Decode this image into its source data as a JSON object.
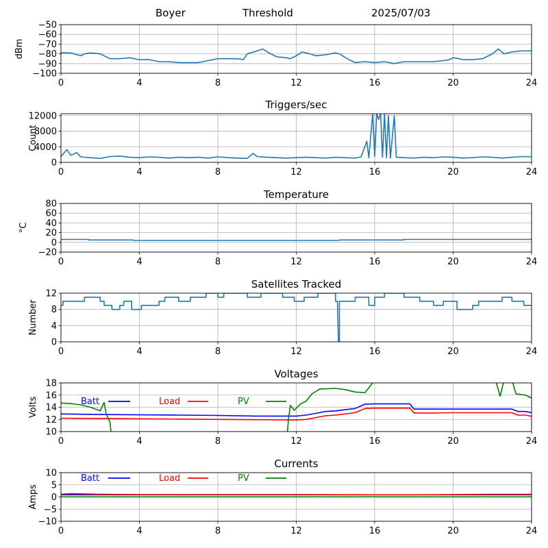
{
  "header": {
    "station": "Boyer",
    "mode": "Threshold",
    "date": "2025/07/03"
  },
  "chart_data": [
    {
      "type": "line",
      "title": "",
      "ylabel": "dBm",
      "xlim": [
        0,
        24
      ],
      "xticks": [
        "0",
        "4",
        "8",
        "12",
        "16",
        "20",
        "24"
      ],
      "ylim": [
        -100,
        -50
      ],
      "yticks": [
        "−50",
        "−60",
        "−70",
        "−80",
        "−90",
        "−100"
      ],
      "grid": true,
      "series": [
        {
          "color": "#1f77b4",
          "x": [
            0,
            0.5,
            1,
            1.2,
            1.5,
            2,
            2.5,
            3,
            3.5,
            4,
            4.5,
            5,
            5.5,
            6,
            6.5,
            7,
            7.5,
            8,
            8.5,
            9,
            9.3,
            9.5,
            10,
            10.3,
            10.6,
            11,
            11.5,
            11.7,
            12,
            12.3,
            12.7,
            13,
            13.5,
            14,
            14.2,
            14.6,
            15,
            15.5,
            16,
            16.5,
            17,
            17.5,
            18,
            18.5,
            19,
            19.5,
            19.8,
            20,
            20.3,
            20.5,
            21,
            21.5,
            22,
            22.3,
            22.6,
            23,
            23.5,
            24
          ],
          "y": [
            -79,
            -79,
            -82,
            -80,
            -79,
            -80,
            -85,
            -85,
            -84,
            -86,
            -86,
            -88,
            -88,
            -89,
            -89,
            -89,
            -87,
            -85,
            -85,
            -85,
            -86,
            -80,
            -77,
            -75,
            -79,
            -83,
            -84,
            -85,
            -82,
            -78,
            -80,
            -82,
            -81,
            -79,
            -80,
            -85,
            -89,
            -88,
            -89,
            -88,
            -90,
            -88,
            -88,
            -88,
            -88,
            -87,
            -86,
            -84,
            -85,
            -86,
            -86,
            -85,
            -80,
            -75,
            -80,
            -78,
            -77,
            -77
          ]
        }
      ]
    },
    {
      "type": "line",
      "title": "Triggers/sec",
      "ylabel": "Count",
      "xlim": [
        0,
        24
      ],
      "xticks": [
        "0",
        "4",
        "8",
        "12",
        "16",
        "20",
        "24"
      ],
      "ylim": [
        0,
        12500
      ],
      "yticks": [
        "12000",
        "8000",
        "4000",
        "0"
      ],
      "grid": true,
      "series": [
        {
          "color": "#1f77b4",
          "x": [
            0,
            0.3,
            0.5,
            0.8,
            1,
            1.5,
            2,
            2.5,
            3,
            3.5,
            4,
            4.5,
            5,
            5.5,
            6,
            6.5,
            7,
            7.5,
            8,
            8.5,
            9,
            9.5,
            9.8,
            10,
            10.5,
            11,
            11.5,
            12,
            12.5,
            13,
            13.5,
            14,
            14.5,
            15,
            15.3,
            15.6,
            15.7,
            15.9,
            16,
            16.1,
            16.2,
            16.3,
            16.4,
            16.5,
            16.6,
            16.7,
            16.8,
            17,
            17.1,
            17.5,
            18,
            18.5,
            19,
            19.5,
            20,
            20.5,
            21,
            21.5,
            22,
            22.5,
            23,
            23.5,
            24
          ],
          "y": [
            1500,
            3300,
            1800,
            2500,
            1400,
            1200,
            1000,
            1500,
            1600,
            1300,
            1200,
            1400,
            1300,
            1100,
            1300,
            1200,
            1300,
            1100,
            1400,
            1200,
            1100,
            1000,
            2300,
            1500,
            1300,
            1200,
            1100,
            1200,
            1300,
            1200,
            1100,
            1300,
            1200,
            1100,
            1400,
            5400,
            1200,
            12500,
            1500,
            12500,
            11000,
            12500,
            1300,
            12500,
            1200,
            12000,
            1100,
            12000,
            1300,
            1200,
            1100,
            1300,
            1200,
            1400,
            1300,
            1100,
            1200,
            1400,
            1300,
            1100,
            1300,
            1500,
            1400
          ]
        }
      ]
    },
    {
      "type": "line",
      "title": "Temperature",
      "ylabel": "°C",
      "xlim": [
        0,
        24
      ],
      "xticks": [
        "0",
        "4",
        "8",
        "12",
        "16",
        "20",
        "24"
      ],
      "ylim": [
        -20,
        80
      ],
      "yticks": [
        "80",
        "60",
        "40",
        "20",
        "0",
        "−20"
      ],
      "grid": true,
      "series": [
        {
          "color": "#1f77b4",
          "x": [
            0,
            1.4,
            1.4,
            3.7,
            3.7,
            14.2,
            14.2,
            17.5,
            17.5,
            24
          ],
          "y": [
            6,
            6,
            5,
            5,
            4,
            4,
            5,
            5,
            6,
            6
          ]
        }
      ]
    },
    {
      "type": "line",
      "title": "Satellites Tracked",
      "ylabel": "Number",
      "xlim": [
        0,
        24
      ],
      "xticks": [
        "0",
        "4",
        "8",
        "12",
        "16",
        "20",
        "24"
      ],
      "ylim": [
        0,
        12
      ],
      "yticks": [
        "12",
        "8",
        "4",
        "0"
      ],
      "grid": true,
      "series": [
        {
          "color": "#1f77b4",
          "x": [
            0,
            0.1,
            0.1,
            1.2,
            1.2,
            2,
            2,
            2.2,
            2.2,
            2.6,
            2.6,
            3,
            3,
            3.2,
            3.2,
            3.6,
            3.6,
            4.1,
            4.1,
            5,
            5,
            5.3,
            5.3,
            6,
            6,
            6.6,
            6.6,
            7.4,
            7.4,
            8,
            8,
            8.3,
            8.3,
            9.5,
            9.5,
            10.2,
            10.2,
            11.3,
            11.3,
            11.9,
            11.9,
            12.4,
            12.4,
            13.1,
            13.1,
            14,
            14,
            14.1,
            14.15,
            14.2,
            14.2,
            15,
            15,
            15.7,
            15.7,
            16,
            16,
            16.5,
            16.5,
            17.5,
            17.5,
            18.3,
            18.3,
            19,
            19,
            19.5,
            19.5,
            20.2,
            20.2,
            21,
            21,
            21.3,
            21.3,
            22.5,
            22.5,
            23,
            23,
            23.6,
            23.6,
            24
          ],
          "y": [
            9,
            9,
            10,
            10,
            11,
            11,
            10,
            10,
            9,
            9,
            8,
            8,
            9,
            9,
            10,
            10,
            8,
            8,
            9,
            9,
            10,
            10,
            11,
            11,
            10,
            10,
            11,
            11,
            12,
            12,
            11,
            11,
            12,
            12,
            11,
            11,
            12,
            12,
            11,
            11,
            10,
            10,
            11,
            11,
            12,
            12,
            10,
            10,
            0,
            0,
            10,
            10,
            11,
            11,
            9,
            9,
            11,
            11,
            12,
            12,
            11,
            11,
            10,
            10,
            9,
            9,
            10,
            10,
            8,
            8,
            9,
            9,
            10,
            10,
            11,
            11,
            10,
            10,
            9,
            9
          ]
        }
      ]
    },
    {
      "type": "line",
      "title": "Voltages",
      "ylabel": "Volts",
      "xlim": [
        0,
        24
      ],
      "xticks": [
        "0",
        "4",
        "8",
        "12",
        "16",
        "20",
        "24"
      ],
      "ylim": [
        10,
        18
      ],
      "yticks": [
        "18",
        "16",
        "14",
        "12",
        "10"
      ],
      "grid": true,
      "legend": [
        "Batt",
        "Load",
        "PV"
      ],
      "series": [
        {
          "name": "Batt",
          "color": "#0000ff",
          "x": [
            0,
            2,
            4,
            6,
            8,
            10,
            12,
            12.5,
            13,
            13.5,
            14,
            15,
            15.5,
            16,
            17,
            17.8,
            18,
            19,
            20,
            21,
            22,
            23,
            23.3,
            23.7,
            24
          ],
          "y": [
            12.9,
            12.8,
            12.75,
            12.7,
            12.65,
            12.55,
            12.55,
            12.7,
            13.0,
            13.3,
            13.4,
            13.8,
            14.5,
            14.55,
            14.55,
            14.55,
            13.7,
            13.7,
            13.7,
            13.7,
            13.7,
            13.7,
            13.3,
            13.3,
            13.1
          ]
        },
        {
          "name": "Load",
          "color": "#ff0000",
          "x": [
            0,
            2,
            4,
            6,
            8,
            10,
            12,
            12.5,
            13,
            13.5,
            14,
            15,
            15.5,
            16,
            17,
            17.8,
            18,
            19,
            20,
            21,
            22,
            23,
            23.3,
            23.7,
            24
          ],
          "y": [
            12.2,
            12.15,
            12.1,
            12.05,
            12,
            11.95,
            11.9,
            12.0,
            12.3,
            12.6,
            12.7,
            13.1,
            13.8,
            13.85,
            13.85,
            13.85,
            13.05,
            13.05,
            13.1,
            13.1,
            13.1,
            13.1,
            12.7,
            12.7,
            12.5
          ]
        },
        {
          "name": "PV",
          "color": "#008000",
          "x": [
            0,
            0.5,
            1,
            1.5,
            2,
            2.2,
            2.3,
            2.5,
            2.55,
            2.6,
            11.5,
            11.55,
            11.6,
            11.7,
            11.9,
            12.2,
            12.5,
            12.8,
            13.2,
            14,
            14.5,
            15,
            15.5,
            15.7,
            16,
            20,
            22,
            22.2,
            22.4,
            22.6,
            23,
            23.2,
            23.7,
            24
          ],
          "y": [
            14.7,
            14.6,
            14.4,
            14,
            13.4,
            14.8,
            13,
            11.5,
            10,
            9,
            9,
            10,
            12,
            14.3,
            13.5,
            14.5,
            15,
            16.2,
            17,
            17.1,
            16.9,
            16.5,
            16.4,
            17.2,
            18.4,
            20,
            20,
            18,
            15.8,
            18.5,
            18.5,
            16.2,
            16,
            15.5
          ]
        }
      ]
    },
    {
      "type": "line",
      "title": "Currents",
      "ylabel": "Amps",
      "xlim": [
        0,
        24
      ],
      "xticks": [
        "0",
        "4",
        "8",
        "12",
        "16",
        "20",
        "24"
      ],
      "ylim": [
        -10,
        10
      ],
      "yticks": [
        "10",
        "5",
        "0",
        "−5",
        "−10"
      ],
      "grid": true,
      "legend": [
        "Batt",
        "Load",
        "PV"
      ],
      "series": [
        {
          "name": "Batt",
          "color": "#0000ff",
          "x": [
            0,
            24
          ],
          "y": [
            0.9,
            0.9
          ]
        },
        {
          "name": "Load",
          "color": "#ff0000",
          "x": [
            0,
            0.5,
            1,
            2,
            4,
            8,
            12,
            16,
            18,
            20,
            22,
            24
          ],
          "y": [
            1.1,
            1.4,
            1.3,
            1.1,
            1.0,
            1.0,
            1.0,
            0.9,
            0.9,
            1.0,
            1.1,
            1.1
          ]
        },
        {
          "name": "PV",
          "color": "#008000",
          "x": [
            0,
            24
          ],
          "y": [
            0.05,
            0.05
          ]
        }
      ]
    }
  ]
}
